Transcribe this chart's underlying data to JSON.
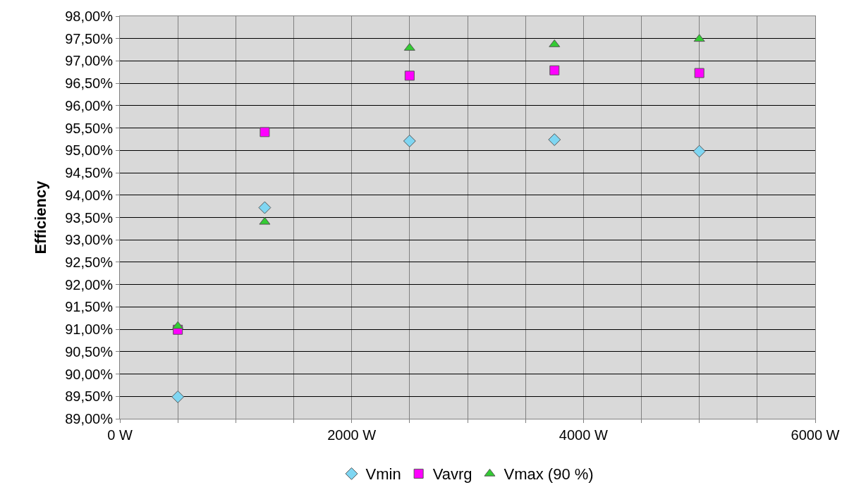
{
  "chart_data": {
    "type": "scatter",
    "ylabel": "Efficiency",
    "x": [
      500,
      1250,
      2500,
      3750,
      5000
    ],
    "series": [
      {
        "name": "Vmin",
        "color": "#7fd6f2",
        "marker": "diamond",
        "values": [
          89.49,
          93.72,
          95.21,
          95.24,
          94.98
        ]
      },
      {
        "name": "Vavrg",
        "color": "#ff00ff",
        "marker": "square",
        "values": [
          90.99,
          95.41,
          96.67,
          96.79,
          96.73
        ]
      },
      {
        "name": "Vmax (90 %)",
        "color": "#33cc33",
        "marker": "triangle",
        "values": [
          91.07,
          93.4,
          97.29,
          97.37,
          97.49
        ]
      }
    ],
    "xlim": [
      0,
      6000
    ],
    "xticks": [
      {
        "value": 0,
        "label": "0 W"
      },
      {
        "value": 500,
        "label": null
      },
      {
        "value": 1000,
        "label": null
      },
      {
        "value": 1500,
        "label": null
      },
      {
        "value": 2000,
        "label": "2000 W"
      },
      {
        "value": 2500,
        "label": null
      },
      {
        "value": 3000,
        "label": null
      },
      {
        "value": 3500,
        "label": null
      },
      {
        "value": 4000,
        "label": "4000 W"
      },
      {
        "value": 4500,
        "label": null
      },
      {
        "value": 5000,
        "label": null
      },
      {
        "value": 5500,
        "label": null
      },
      {
        "value": 6000,
        "label": "6000 W"
      }
    ],
    "ylim": [
      89,
      98
    ],
    "yticks": [
      {
        "value": 89,
        "label": "89,00%"
      },
      {
        "value": 89.5,
        "label": "89,50%"
      },
      {
        "value": 90,
        "label": "90,00%"
      },
      {
        "value": 90.5,
        "label": "90,50%"
      },
      {
        "value": 91,
        "label": "91,00%"
      },
      {
        "value": 91.5,
        "label": "91,50%"
      },
      {
        "value": 92,
        "label": "92,00%"
      },
      {
        "value": 92.5,
        "label": "92,50%"
      },
      {
        "value": 93,
        "label": "93,00%"
      },
      {
        "value": 93.5,
        "label": "93,50%"
      },
      {
        "value": 94,
        "label": "94,00%"
      },
      {
        "value": 94.5,
        "label": "94,50%"
      },
      {
        "value": 95,
        "label": "95,00%"
      },
      {
        "value": 95.5,
        "label": "95,50%"
      },
      {
        "value": 96,
        "label": "96,00%"
      },
      {
        "value": 96.5,
        "label": "96,50%"
      },
      {
        "value": 97,
        "label": "97,00%"
      },
      {
        "value": 97.5,
        "label": "97,50%"
      },
      {
        "value": 98,
        "label": "98,00%"
      }
    ],
    "grid": true,
    "legend": "bottom"
  }
}
